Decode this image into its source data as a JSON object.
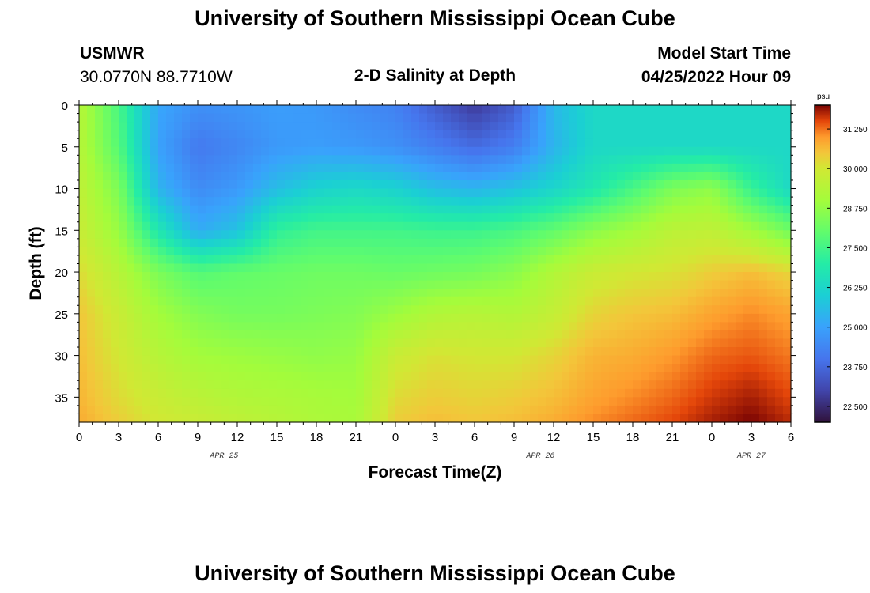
{
  "page": {
    "title_top": "University of Southern Mississippi Ocean Cube",
    "title_bottom": "University of Southern Mississippi Ocean Cube",
    "station": "USMWR",
    "coords": "30.0770N  88.7710W",
    "model_start_label": "Model Start Time",
    "model_start_value": "04/25/2022 Hour 09"
  },
  "chart_data": {
    "type": "heatmap",
    "title": "2-D Salinity at Depth",
    "xlabel": "Forecast Time(Z)",
    "ylabel": "Depth (ft)",
    "x_range_hours": [
      0,
      54
    ],
    "x_tick_labels": [
      "0",
      "3",
      "6",
      "9",
      "12",
      "15",
      "18",
      "21",
      "0",
      "3",
      "6",
      "9",
      "12",
      "15",
      "18",
      "21",
      "0",
      "3",
      "6"
    ],
    "date_labels": [
      {
        "label": "APR 25",
        "hour": 11
      },
      {
        "label": "APR 26",
        "hour": 35
      },
      {
        "label": "APR 27",
        "hour": 51
      }
    ],
    "y_range_ft": [
      0,
      38
    ],
    "y_ticks": [
      0,
      5,
      10,
      15,
      20,
      25,
      30,
      35
    ],
    "colorbar": {
      "unit": "psu",
      "range": [
        22.0,
        32.0
      ],
      "ticks": [
        22.5,
        23.75,
        25.0,
        26.25,
        27.5,
        28.75,
        30.0,
        31.25
      ],
      "tick_labels": [
        "22.500",
        "23.750",
        "25.000",
        "26.250",
        "27.500",
        "28.750",
        "30.000",
        "31.250"
      ]
    },
    "series": [
      {
        "name": "depth 0 ft",
        "depth": 0,
        "x": [
          0,
          3,
          6,
          9,
          12,
          15,
          18,
          21,
          24,
          27,
          30,
          33,
          36,
          39,
          42,
          45,
          48,
          51,
          54
        ],
        "values": [
          29.4,
          27.6,
          25.1,
          24.6,
          24.7,
          24.9,
          24.8,
          24.5,
          24.3,
          23.5,
          22.8,
          23.5,
          25.5,
          26.3,
          26.3,
          26.3,
          26.3,
          26.3,
          26.3
        ]
      },
      {
        "name": "depth 5 ft",
        "depth": 5,
        "x": [
          0,
          3,
          6,
          9,
          12,
          15,
          18,
          21,
          24,
          27,
          30,
          33,
          36,
          39,
          42,
          45,
          48,
          51,
          54
        ],
        "values": [
          29.4,
          27.8,
          25.0,
          24.1,
          24.4,
          24.8,
          24.9,
          24.8,
          24.6,
          24.2,
          23.8,
          24.2,
          25.4,
          26.3,
          26.3,
          26.3,
          26.3,
          26.3,
          26.3
        ]
      },
      {
        "name": "depth 10 ft",
        "depth": 10,
        "x": [
          0,
          3,
          6,
          9,
          12,
          15,
          18,
          21,
          24,
          27,
          30,
          33,
          36,
          39,
          42,
          45,
          48,
          51,
          54
        ],
        "values": [
          29.6,
          28.4,
          25.4,
          24.5,
          24.8,
          25.6,
          26.1,
          26.3,
          26.1,
          25.6,
          25.4,
          25.7,
          26.2,
          26.8,
          27.6,
          28.4,
          28.7,
          27.3,
          26.3
        ]
      },
      {
        "name": "depth 15 ft",
        "depth": 15,
        "x": [
          0,
          3,
          6,
          9,
          12,
          15,
          18,
          21,
          24,
          27,
          30,
          33,
          36,
          39,
          42,
          45,
          48,
          51,
          54
        ],
        "values": [
          29.8,
          28.8,
          26.8,
          25.2,
          25.7,
          27.2,
          27.5,
          27.5,
          27.5,
          27.4,
          27.4,
          27.6,
          28.0,
          28.6,
          29.0,
          29.5,
          29.6,
          29.0,
          28.2
        ]
      },
      {
        "name": "depth 20 ft",
        "depth": 20,
        "x": [
          0,
          3,
          6,
          9,
          12,
          15,
          18,
          21,
          24,
          27,
          30,
          33,
          36,
          39,
          42,
          45,
          48,
          51,
          54
        ],
        "values": [
          30.2,
          29.4,
          28.4,
          27.8,
          28.0,
          28.1,
          28.2,
          28.2,
          28.1,
          28.2,
          28.3,
          28.6,
          29.3,
          29.8,
          30.0,
          30.1,
          30.4,
          30.6,
          30.3
        ]
      },
      {
        "name": "depth 25 ft",
        "depth": 25,
        "x": [
          0,
          3,
          6,
          9,
          12,
          15,
          18,
          21,
          24,
          27,
          30,
          33,
          36,
          39,
          42,
          45,
          48,
          51,
          54
        ],
        "values": [
          30.5,
          29.8,
          29.0,
          28.5,
          28.3,
          28.3,
          28.4,
          28.5,
          28.9,
          29.3,
          29.4,
          29.3,
          29.7,
          30.3,
          30.5,
          30.6,
          30.9,
          31.1,
          30.9
        ]
      },
      {
        "name": "depth 30 ft",
        "depth": 30,
        "x": [
          0,
          3,
          6,
          9,
          12,
          15,
          18,
          21,
          24,
          27,
          30,
          33,
          36,
          39,
          42,
          45,
          48,
          51,
          54
        ],
        "values": [
          30.6,
          30.0,
          29.4,
          29.0,
          28.9,
          28.8,
          28.7,
          28.8,
          29.8,
          30.1,
          30.0,
          30.0,
          30.3,
          30.7,
          30.8,
          31.0,
          31.3,
          31.4,
          31.2
        ]
      },
      {
        "name": "depth 35 ft",
        "depth": 35,
        "x": [
          0,
          3,
          6,
          9,
          12,
          15,
          18,
          21,
          24,
          27,
          30,
          33,
          36,
          39,
          42,
          45,
          48,
          51,
          54
        ],
        "values": [
          30.7,
          30.2,
          29.8,
          29.5,
          29.3,
          29.2,
          29.1,
          29.0,
          30.2,
          30.4,
          30.3,
          30.4,
          30.6,
          30.9,
          31.1,
          31.3,
          31.6,
          31.8,
          31.5
        ]
      },
      {
        "name": "depth 38 ft",
        "depth": 38,
        "x": [
          0,
          3,
          6,
          9,
          12,
          15,
          18,
          21,
          24,
          27,
          30,
          33,
          36,
          39,
          42,
          45,
          48,
          51,
          54
        ],
        "values": [
          30.8,
          30.4,
          30.0,
          29.8,
          29.6,
          29.4,
          29.2,
          29.1,
          30.4,
          30.6,
          30.5,
          30.6,
          30.8,
          31.1,
          31.3,
          31.5,
          31.8,
          32.0,
          31.7
        ]
      }
    ]
  }
}
